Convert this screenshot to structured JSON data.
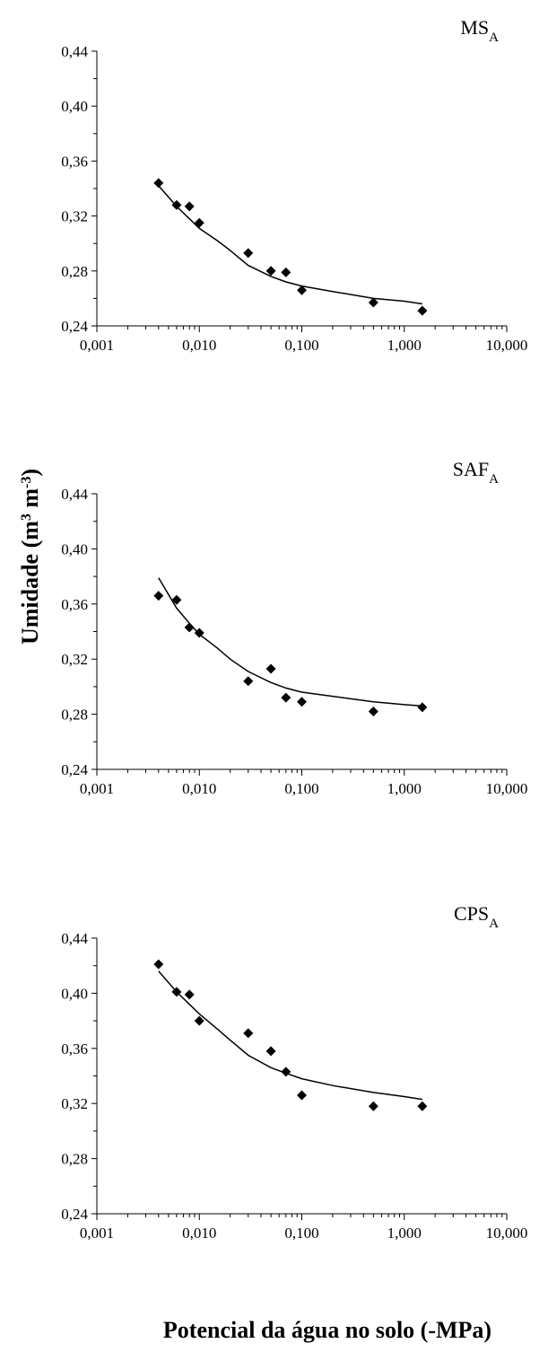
{
  "figure": {
    "ylabel_main": "Umidade (m",
    "ylabel_sup1": "3",
    "ylabel_mid": " m",
    "ylabel_sup2": "-3",
    "ylabel_end": ")",
    "xlabel": "Potencial da água no solo (-MPa)",
    "marker_color": "#000000",
    "line_color": "#000000"
  },
  "chart_data": [
    {
      "type": "scatter",
      "title_main": "MS",
      "title_sub": "A",
      "x_scale": "log",
      "xlim": [
        0.001,
        10
      ],
      "ylim": [
        0.24,
        0.44
      ],
      "xtick_labels": [
        "0,001",
        "0,010",
        "0,100",
        "1,000",
        "10,000"
      ],
      "ytick_labels": [
        "0,24",
        "0,28",
        "0,32",
        "0,36",
        "0,40",
        "0,44"
      ],
      "grid": false,
      "points": [
        {
          "x": 0.004,
          "y": 0.344
        },
        {
          "x": 0.006,
          "y": 0.328
        },
        {
          "x": 0.008,
          "y": 0.327
        },
        {
          "x": 0.01,
          "y": 0.315
        },
        {
          "x": 0.03,
          "y": 0.293
        },
        {
          "x": 0.05,
          "y": 0.28
        },
        {
          "x": 0.07,
          "y": 0.279
        },
        {
          "x": 0.1,
          "y": 0.266
        },
        {
          "x": 0.5,
          "y": 0.257
        },
        {
          "x": 1.5,
          "y": 0.251
        }
      ],
      "fit": [
        {
          "x": 0.004,
          "y": 0.342
        },
        {
          "x": 0.006,
          "y": 0.327
        },
        {
          "x": 0.008,
          "y": 0.318
        },
        {
          "x": 0.01,
          "y": 0.311
        },
        {
          "x": 0.015,
          "y": 0.302
        },
        {
          "x": 0.02,
          "y": 0.295
        },
        {
          "x": 0.03,
          "y": 0.284
        },
        {
          "x": 0.05,
          "y": 0.276
        },
        {
          "x": 0.07,
          "y": 0.272
        },
        {
          "x": 0.1,
          "y": 0.269
        },
        {
          "x": 0.2,
          "y": 0.265
        },
        {
          "x": 0.5,
          "y": 0.26
        },
        {
          "x": 1.0,
          "y": 0.258
        },
        {
          "x": 1.5,
          "y": 0.256
        }
      ]
    },
    {
      "type": "scatter",
      "title_main": "SAF",
      "title_sub": "A",
      "x_scale": "log",
      "xlim": [
        0.001,
        10
      ],
      "ylim": [
        0.24,
        0.44
      ],
      "xtick_labels": [
        "0,001",
        "0,010",
        "0,100",
        "1,000",
        "10,000"
      ],
      "ytick_labels": [
        "0,24",
        "0,28",
        "0,32",
        "0,36",
        "0,40",
        "0,44"
      ],
      "grid": false,
      "points": [
        {
          "x": 0.004,
          "y": 0.366
        },
        {
          "x": 0.006,
          "y": 0.363
        },
        {
          "x": 0.008,
          "y": 0.343
        },
        {
          "x": 0.01,
          "y": 0.339
        },
        {
          "x": 0.03,
          "y": 0.304
        },
        {
          "x": 0.05,
          "y": 0.313
        },
        {
          "x": 0.07,
          "y": 0.292
        },
        {
          "x": 0.1,
          "y": 0.289
        },
        {
          "x": 0.5,
          "y": 0.282
        },
        {
          "x": 1.5,
          "y": 0.285
        }
      ],
      "fit": [
        {
          "x": 0.004,
          "y": 0.379
        },
        {
          "x": 0.006,
          "y": 0.357
        },
        {
          "x": 0.008,
          "y": 0.346
        },
        {
          "x": 0.01,
          "y": 0.338
        },
        {
          "x": 0.015,
          "y": 0.328
        },
        {
          "x": 0.02,
          "y": 0.32
        },
        {
          "x": 0.03,
          "y": 0.311
        },
        {
          "x": 0.05,
          "y": 0.303
        },
        {
          "x": 0.07,
          "y": 0.299
        },
        {
          "x": 0.1,
          "y": 0.296
        },
        {
          "x": 0.2,
          "y": 0.293
        },
        {
          "x": 0.5,
          "y": 0.289
        },
        {
          "x": 1.0,
          "y": 0.287
        },
        {
          "x": 1.5,
          "y": 0.286
        }
      ]
    },
    {
      "type": "scatter",
      "title_main": "CPS",
      "title_sub": "A",
      "x_scale": "log",
      "xlim": [
        0.001,
        10
      ],
      "ylim": [
        0.24,
        0.44
      ],
      "xtick_labels": [
        "0,001",
        "0,010",
        "0,100",
        "1,000",
        "10,000"
      ],
      "ytick_labels": [
        "0,24",
        "0,28",
        "0,32",
        "0,36",
        "0,40",
        "0,44"
      ],
      "grid": false,
      "points": [
        {
          "x": 0.004,
          "y": 0.421
        },
        {
          "x": 0.006,
          "y": 0.401
        },
        {
          "x": 0.008,
          "y": 0.399
        },
        {
          "x": 0.01,
          "y": 0.38
        },
        {
          "x": 0.03,
          "y": 0.371
        },
        {
          "x": 0.05,
          "y": 0.358
        },
        {
          "x": 0.07,
          "y": 0.343
        },
        {
          "x": 0.1,
          "y": 0.326
        },
        {
          "x": 0.5,
          "y": 0.318
        },
        {
          "x": 1.5,
          "y": 0.318
        }
      ],
      "fit": [
        {
          "x": 0.004,
          "y": 0.416
        },
        {
          "x": 0.006,
          "y": 0.401
        },
        {
          "x": 0.008,
          "y": 0.392
        },
        {
          "x": 0.01,
          "y": 0.385
        },
        {
          "x": 0.015,
          "y": 0.374
        },
        {
          "x": 0.02,
          "y": 0.366
        },
        {
          "x": 0.03,
          "y": 0.355
        },
        {
          "x": 0.05,
          "y": 0.346
        },
        {
          "x": 0.07,
          "y": 0.342
        },
        {
          "x": 0.1,
          "y": 0.338
        },
        {
          "x": 0.2,
          "y": 0.333
        },
        {
          "x": 0.5,
          "y": 0.328
        },
        {
          "x": 1.0,
          "y": 0.325
        },
        {
          "x": 1.5,
          "y": 0.323
        }
      ]
    }
  ]
}
